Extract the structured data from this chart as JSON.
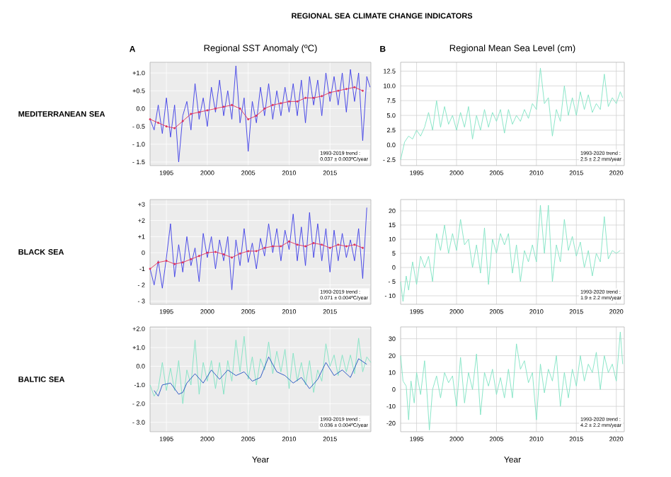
{
  "chart_data": [
    {
      "type": "line",
      "title": "REGIONAL SEA CLIMATE CHANGE INDICATORS",
      "subtitle": "Regional SST Anomaly (ºC)",
      "ylabel": "MEDITERRANEAN SEA",
      "annotations": [
        "A",
        "1993-2019 trend :",
        "0.037 ± 0.003ºC/year"
      ],
      "grid": true,
      "xlim": [
        1993,
        2020
      ],
      "ylim": [
        -1.6,
        1.3
      ],
      "xticks": [
        1995,
        2000,
        2005,
        2010,
        2015
      ],
      "yticks": [
        {
          "value": 1.0,
          "label": "+1.0"
        },
        {
          "value": 0.5,
          "label": "+0.5"
        },
        {
          "value": 0,
          "label": "0.0"
        },
        {
          "value": -0.5,
          "label": "- 0.5"
        },
        {
          "value": -1.0,
          "label": "- 1.0"
        },
        {
          "value": -1.5,
          "label": "- 1.5"
        }
      ],
      "series": [
        {
          "color": "#3b3be6",
          "x": [
            1993.0,
            1993.5,
            1994.0,
            1994.5,
            1995.0,
            1995.5,
            1996.0,
            1996.5,
            1997.0,
            1997.5,
            1998.0,
            1998.5,
            1999.0,
            1999.5,
            2000.0,
            2000.5,
            2001.0,
            2001.5,
            2002.0,
            2002.5,
            2003.0,
            2003.5,
            2004.0,
            2004.5,
            2005.0,
            2005.5,
            2006.0,
            2006.5,
            2007.0,
            2007.5,
            2008.0,
            2008.5,
            2009.0,
            2009.5,
            2010.0,
            2010.5,
            2011.0,
            2011.5,
            2012.0,
            2012.5,
            2013.0,
            2013.5,
            2014.0,
            2014.5,
            2015.0,
            2015.5,
            2016.0,
            2016.5,
            2017.0,
            2017.5,
            2018.0,
            2018.5,
            2019.0,
            2019.5,
            2019.9
          ],
          "values": [
            -0.3,
            -0.6,
            0.1,
            -0.7,
            0.3,
            -0.8,
            0.1,
            -1.5,
            -0.2,
            0.2,
            -0.6,
            0.7,
            -0.3,
            0.3,
            -0.5,
            0.6,
            -0.1,
            0.8,
            -0.2,
            0.5,
            -0.3,
            1.2,
            -0.4,
            0.3,
            -1.2,
            0.2,
            -0.4,
            0.6,
            -0.2,
            0.7,
            -0.3,
            0.5,
            -0.2,
            0.6,
            -0.1,
            0.7,
            -0.2,
            0.8,
            -0.4,
            0.9,
            0.1,
            0.8,
            -0.2,
            1.0,
            0.2,
            0.9,
            0.1,
            1.0,
            -0.1,
            1.1,
            0.2,
            1.0,
            -0.9,
            0.9,
            0.6
          ]
        },
        {
          "color": "#e0305a",
          "marker": "circle",
          "x": [
            1993,
            1994,
            1995,
            1996,
            1997,
            1998,
            1999,
            2000,
            2001,
            2002,
            2003,
            2004,
            2005,
            2006,
            2007,
            2008,
            2009,
            2010,
            2011,
            2012,
            2013,
            2014,
            2015,
            2016,
            2017,
            2018,
            2019
          ],
          "values": [
            -0.3,
            -0.4,
            -0.5,
            -0.55,
            -0.35,
            -0.15,
            -0.1,
            -0.05,
            0.0,
            0.05,
            0.1,
            0.0,
            -0.3,
            -0.2,
            0.0,
            0.1,
            0.15,
            0.2,
            0.2,
            0.3,
            0.3,
            0.35,
            0.45,
            0.5,
            0.55,
            0.6,
            0.5
          ]
        }
      ]
    },
    {
      "type": "line",
      "title": "Regional Mean Sea Level (cm)",
      "annotations": [
        "B",
        "1993-2020 trend :",
        "2.5 ± 2.2 mm/year"
      ],
      "grid": true,
      "xlim": [
        1993,
        2021
      ],
      "ylim": [
        -3.5,
        14
      ],
      "xticks": [
        1995,
        2000,
        2005,
        2010,
        2015,
        2020
      ],
      "yticks": [
        {
          "value": 12.5,
          "label": "12.5"
        },
        {
          "value": 10,
          "label": "10.0"
        },
        {
          "value": 7.5,
          "label": "7.5"
        },
        {
          "value": 5,
          "label": "5.0"
        },
        {
          "value": 2.5,
          "label": "2.5"
        },
        {
          "value": 0,
          "label": "0.0"
        },
        {
          "value": -2.5,
          "label": "- 2.5"
        }
      ],
      "series": [
        {
          "color": "#7fe3c3",
          "x": [
            1993,
            1993.5,
            1994,
            1994.5,
            1995,
            1995.5,
            1996,
            1996.5,
            1997,
            1997.5,
            1998,
            1998.5,
            1999,
            1999.5,
            2000,
            2000.5,
            2001,
            2001.5,
            2002,
            2002.5,
            2003,
            2003.5,
            2004,
            2004.5,
            2005,
            2005.5,
            2006,
            2006.5,
            2007,
            2007.5,
            2008,
            2008.5,
            2009,
            2009.5,
            2010,
            2010.5,
            2011,
            2011.5,
            2012,
            2012.5,
            2013,
            2013.5,
            2014,
            2014.5,
            2015,
            2015.5,
            2016,
            2016.5,
            2017,
            2017.5,
            2018,
            2018.5,
            2019,
            2019.5,
            2020,
            2020.5,
            2020.8
          ],
          "values": [
            -2.5,
            0.5,
            1.5,
            1.0,
            2.5,
            1.5,
            3.0,
            5.5,
            2.5,
            7.5,
            3.0,
            6.5,
            3.5,
            5.0,
            2.5,
            5.5,
            3.0,
            6.5,
            1.0,
            5.0,
            2.5,
            6.0,
            3.0,
            5.5,
            4.0,
            6.0,
            2.0,
            6.0,
            3.5,
            5.0,
            4.0,
            6.0,
            4.5,
            7.0,
            6.0,
            13.0,
            7.0,
            8.0,
            1.5,
            6.0,
            4.0,
            10.0,
            5.0,
            8.0,
            5.0,
            9.0,
            6.0,
            8.5,
            5.5,
            7.0,
            6.0,
            12.0,
            6.5,
            8.0,
            7.0,
            9.0,
            8.0
          ]
        }
      ]
    },
    {
      "type": "line",
      "ylabel": "BLACK SEA",
      "annotations": [
        "1993-2019 trend :",
        "0.071 ± 0.004ºC/year"
      ],
      "grid": true,
      "xlim": [
        1993,
        2020
      ],
      "ylim": [
        -3.2,
        3.3
      ],
      "xticks": [
        1995,
        2000,
        2005,
        2010,
        2015
      ],
      "yticks": [
        {
          "value": 3,
          "label": "+3"
        },
        {
          "value": 2,
          "label": "+2"
        },
        {
          "value": 1,
          "label": "+1"
        },
        0,
        {
          "value": -1,
          "label": "-1"
        },
        {
          "value": -2,
          "label": "- 2"
        },
        {
          "value": -3,
          "label": "- 3"
        }
      ],
      "series": [
        {
          "color": "#3b3be6",
          "x": [
            1993,
            1993.5,
            1994,
            1994.5,
            1995,
            1995.5,
            1996,
            1996.5,
            1997,
            1997.5,
            1998,
            1998.5,
            1999,
            1999.5,
            2000,
            2000.5,
            2001,
            2001.5,
            2002,
            2002.5,
            2003,
            2003.5,
            2004,
            2004.5,
            2005,
            2005.5,
            2006,
            2006.5,
            2007,
            2007.5,
            2008,
            2008.5,
            2009,
            2009.5,
            2010,
            2010.5,
            2011,
            2011.5,
            2012,
            2012.5,
            2013,
            2013.5,
            2014,
            2014.5,
            2015,
            2015.5,
            2016,
            2016.5,
            2017,
            2017.5,
            2018,
            2018.5,
            2019,
            2019.5
          ],
          "values": [
            -1.0,
            -2.0,
            -0.5,
            -2.2,
            -0.3,
            1.8,
            -1.5,
            0.5,
            -1.2,
            1.0,
            -0.8,
            0.3,
            -1.8,
            1.2,
            -0.3,
            1.0,
            -1.0,
            0.8,
            -0.5,
            1.0,
            -2.3,
            0.8,
            -0.8,
            1.5,
            -0.6,
            0.6,
            -1.0,
            0.9,
            -0.2,
            1.8,
            0.0,
            1.5,
            -0.5,
            1.4,
            0.2,
            2.4,
            -0.5,
            1.6,
            -0.8,
            2.5,
            -0.3,
            1.8,
            -0.5,
            1.5,
            -1.2,
            1.4,
            -0.5,
            1.2,
            -0.3,
            0.8,
            -0.5,
            1.5,
            -1.6,
            2.8
          ]
        },
        {
          "color": "#e0305a",
          "marker": "circle",
          "x": [
            1993,
            1994,
            1995,
            1996,
            1997,
            1998,
            1999,
            2000,
            2001,
            2002,
            2003,
            2004,
            2005,
            2006,
            2007,
            2008,
            2009,
            2010,
            2011,
            2012,
            2013,
            2014,
            2015,
            2016,
            2017,
            2018,
            2019
          ],
          "values": [
            -1.0,
            -0.6,
            -0.5,
            -0.7,
            -0.6,
            -0.4,
            -0.2,
            0.0,
            0.05,
            -0.1,
            -0.3,
            -0.05,
            0.1,
            0.1,
            0.3,
            0.4,
            0.4,
            0.7,
            0.5,
            0.4,
            0.6,
            0.5,
            0.3,
            0.5,
            0.4,
            0.5,
            0.3
          ]
        }
      ]
    },
    {
      "type": "line",
      "annotations": [
        "1993-2020 trend :",
        "1.9 ± 2.2 mm/year"
      ],
      "grid": true,
      "xlim": [
        1993,
        2021
      ],
      "ylim": [
        -13,
        24
      ],
      "xticks": [
        1995,
        2000,
        2005,
        2010,
        2015,
        2020
      ],
      "yticks": [
        20,
        15,
        10,
        5,
        0,
        {
          "value": -5,
          "label": "- 5"
        },
        {
          "value": -10,
          "label": "- 10"
        }
      ],
      "series": [
        {
          "color": "#7fe3c3",
          "x": [
            1993,
            1993.3,
            1993.7,
            1994,
            1994.5,
            1995,
            1995.5,
            1996,
            1996.5,
            1997,
            1997.5,
            1998,
            1998.5,
            1999,
            1999.5,
            2000,
            2000.5,
            2001,
            2001.5,
            2002,
            2002.5,
            2003,
            2003.5,
            2004,
            2004.5,
            2005,
            2005.5,
            2006,
            2006.5,
            2007,
            2007.5,
            2008,
            2008.5,
            2009,
            2009.5,
            2010,
            2010.5,
            2011,
            2011.5,
            2012,
            2012.5,
            2013,
            2013.5,
            2014,
            2014.5,
            2015,
            2015.5,
            2016,
            2016.5,
            2017,
            2017.5,
            2018,
            2018.5,
            2019,
            2019.5,
            2020,
            2020.5
          ],
          "values": [
            -5,
            -12,
            -3,
            -8,
            2,
            -6,
            4,
            0,
            4,
            -5,
            12,
            6,
            15,
            5,
            12,
            6,
            17,
            8,
            10,
            0,
            8,
            -2,
            14,
            -6,
            10,
            5,
            12,
            8,
            12,
            -2,
            8,
            -5,
            6,
            2,
            8,
            2,
            22,
            5,
            22,
            -5,
            8,
            2,
            17,
            6,
            11,
            4,
            9,
            0,
            6,
            -3,
            5,
            2,
            18,
            3,
            6,
            5,
            6
          ]
        }
      ]
    },
    {
      "type": "line",
      "ylabel": "BALTIC SEA",
      "xlabel": "Year",
      "annotations": [
        "1993-2019 trend :",
        "0.036 ± 0.004ºC/year"
      ],
      "grid": true,
      "xlim": [
        1993,
        2020
      ],
      "ylim": [
        -3.5,
        2.1
      ],
      "xticks": [
        1995,
        2000,
        2005,
        2010,
        2015
      ],
      "yticks": [
        {
          "value": 2,
          "label": "+2.0"
        },
        {
          "value": 1,
          "label": "+1.0"
        },
        {
          "value": 0,
          "label": "0.0"
        },
        {
          "value": -1,
          "label": "-1.0"
        },
        {
          "value": -2,
          "label": "- 2.0"
        },
        {
          "value": -3,
          "label": "- 3.0"
        }
      ],
      "series": [
        {
          "color": "#7fe3c3",
          "x": [
            1993,
            1993.5,
            1994,
            1994.5,
            1995,
            1995.5,
            1996,
            1996.5,
            1997,
            1997.5,
            1998,
            1998.5,
            1999,
            1999.5,
            2000,
            2000.5,
            2001,
            2001.5,
            2002,
            2002.5,
            2003,
            2003.5,
            2004,
            2004.5,
            2005,
            2005.5,
            2006,
            2006.5,
            2007,
            2007.5,
            2008,
            2008.5,
            2009,
            2009.5,
            2010,
            2010.5,
            2011,
            2011.5,
            2012,
            2012.5,
            2013,
            2013.5,
            2014,
            2014.5,
            2015,
            2015.5,
            2016,
            2016.5,
            2017,
            2017.5,
            2018,
            2018.5,
            2019,
            2019.5,
            2020
          ],
          "values": [
            -1.0,
            -1.6,
            -1.2,
            0.2,
            -1.3,
            -0.1,
            -1.3,
            0.3,
            -2.0,
            -0.2,
            -1.0,
            1.4,
            -1.5,
            0.2,
            -0.8,
            0.3,
            -1.2,
            0.2,
            -1.5,
            0.3,
            -0.8,
            1.4,
            -0.3,
            1.6,
            -0.7,
            0.5,
            -1.0,
            0.4,
            -0.2,
            1.3,
            -0.4,
            0.8,
            -0.3,
            0.9,
            -1.2,
            0.7,
            -0.8,
            0.2,
            -1.0,
            0.3,
            -1.4,
            -0.2,
            -0.8,
            1.2,
            0.0,
            0.6,
            -0.5,
            0.6,
            -0.3,
            0.6,
            -0.4,
            1.5,
            -0.3,
            0.5,
            0.2
          ]
        },
        {
          "color": "#1f4fbf",
          "x": [
            1993.5,
            1994,
            1994.5,
            1995.5,
            1996.5,
            1997,
            1997.5,
            1998.5,
            1999.5,
            2000.5,
            2001.5,
            2002.5,
            2003.5,
            2004.5,
            2005.5,
            2006.5,
            2007.5,
            2008.5,
            2009.5,
            2010.5,
            2011.5,
            2012.5,
            2013.5,
            2014.5,
            2015.5,
            2016.5,
            2017.5,
            2018.5,
            2019.5
          ],
          "values": [
            -1.3,
            -1.6,
            -1.0,
            -0.9,
            -1.5,
            -1.4,
            -0.9,
            -0.4,
            -0.9,
            -0.2,
            -0.7,
            -0.2,
            -0.5,
            -0.3,
            -0.8,
            -0.6,
            0.5,
            -0.3,
            -0.5,
            -0.9,
            -0.6,
            -1.2,
            -0.7,
            0.2,
            -0.5,
            -0.2,
            -0.6,
            0.4,
            0.1
          ]
        }
      ]
    },
    {
      "type": "line",
      "xlabel": "Year",
      "annotations": [
        "1993-2020 trend :",
        "4.2 ± 2.2 mm/year"
      ],
      "grid": true,
      "xlim": [
        1993,
        2021
      ],
      "ylim": [
        -25,
        37
      ],
      "xticks": [
        1995,
        2000,
        2005,
        2010,
        2015,
        2020
      ],
      "yticks": [
        30,
        20,
        10,
        0,
        {
          "value": -10,
          "label": "-10"
        },
        {
          "value": -20,
          "label": "-20"
        }
      ],
      "series": [
        {
          "color": "#7fe3c3",
          "x": [
            1993,
            1993.3,
            1993.7,
            1994,
            1994.3,
            1994.7,
            1995,
            1995.5,
            1996,
            1996.3,
            1996.6,
            1997,
            1997.5,
            1998,
            1998.5,
            1999,
            1999.5,
            2000,
            2000.5,
            2001,
            2001.5,
            2002,
            2002.5,
            2003,
            2003.5,
            2004,
            2004.5,
            2005,
            2005.5,
            2006,
            2006.5,
            2007,
            2007.5,
            2008,
            2008.5,
            2009,
            2009.5,
            2010,
            2010.5,
            2011,
            2011.5,
            2012,
            2012.5,
            2013,
            2013.5,
            2014,
            2014.5,
            2015,
            2015.5,
            2016,
            2016.5,
            2017,
            2017.5,
            2018,
            2018.5,
            2019,
            2019.5,
            2020,
            2020.5,
            2020.8
          ],
          "values": [
            20,
            5,
            2,
            -18,
            5,
            -8,
            10,
            -3,
            17,
            -2,
            -24,
            0,
            8,
            -5,
            10,
            4,
            8,
            -10,
            19,
            -8,
            10,
            0,
            21,
            -15,
            10,
            2,
            12,
            -3,
            7,
            -5,
            12,
            -5,
            27,
            12,
            17,
            4,
            10,
            -18,
            15,
            -2,
            12,
            5,
            20,
            -10,
            10,
            -5,
            12,
            2,
            20,
            5,
            15,
            10,
            22,
            0,
            20,
            10,
            15,
            5,
            34,
            15
          ]
        }
      ]
    }
  ]
}
